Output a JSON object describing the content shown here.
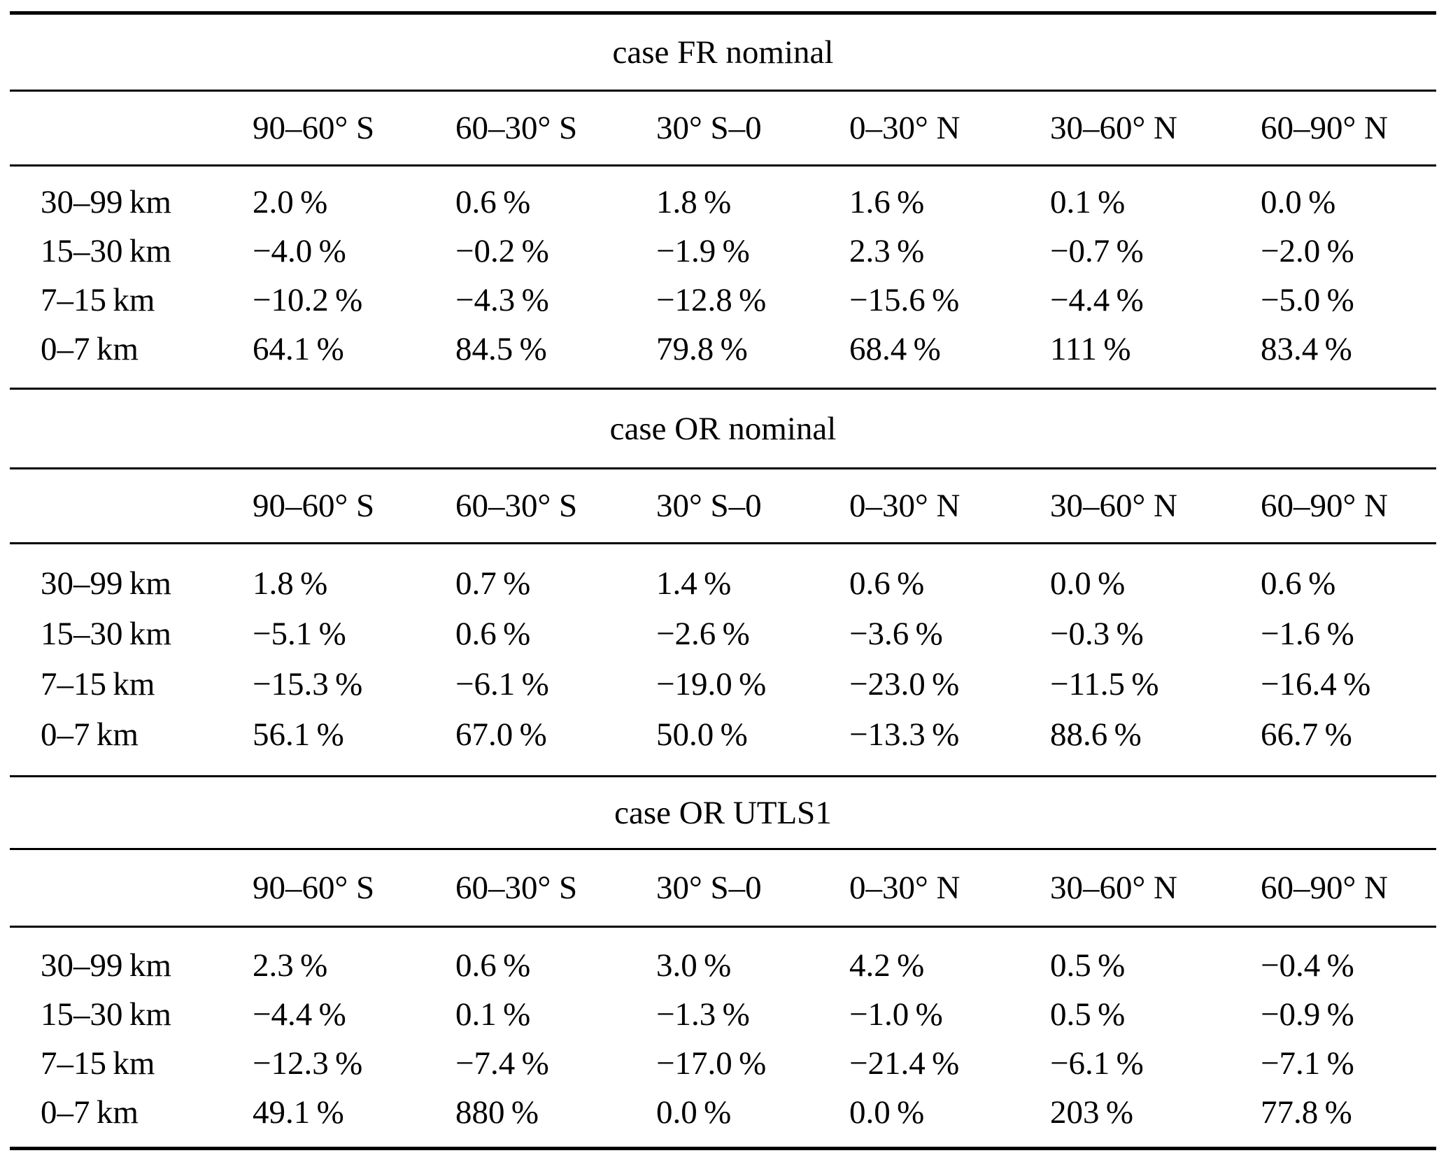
{
  "colors": {
    "background": "#ffffff",
    "text": "#000000",
    "rule": "#000000"
  },
  "tables": [
    {
      "title": "case FR nominal",
      "col_headers": [
        "90–60° S",
        "60–30° S",
        "30° S–0",
        "0–30° N",
        "30–60° N",
        "60–90° N"
      ],
      "rows": [
        {
          "label": "30–99 km",
          "values": [
            "2.0 %",
            "0.6 %",
            "1.8 %",
            "1.6 %",
            "0.1 %",
            "0.0 %"
          ]
        },
        {
          "label": "15–30 km",
          "values": [
            "−4.0 %",
            "−0.2 %",
            "−1.9 %",
            "2.3 %",
            "−0.7 %",
            "−2.0 %"
          ]
        },
        {
          "label": "7–15 km",
          "values": [
            "−10.2 %",
            "−4.3 %",
            "−12.8 %",
            "−15.6 %",
            "−4.4 %",
            "−5.0 %"
          ]
        },
        {
          "label": "0–7 km",
          "values": [
            "64.1 %",
            "84.5 %",
            "79.8 %",
            "68.4 %",
            "111 %",
            "83.4 %"
          ]
        }
      ]
    },
    {
      "title": "case OR nominal",
      "col_headers": [
        "90–60° S",
        "60–30° S",
        "30° S–0",
        "0–30° N",
        "30–60° N",
        "60–90° N"
      ],
      "rows": [
        {
          "label": "30–99 km",
          "values": [
            "1.8 %",
            "0.7 %",
            "1.4 %",
            "0.6 %",
            "0.0 %",
            "0.6 %"
          ]
        },
        {
          "label": "15–30 km",
          "values": [
            "−5.1 %",
            "0.6 %",
            "−2.6 %",
            "−3.6 %",
            "−0.3 %",
            "−1.6 %"
          ]
        },
        {
          "label": "7–15 km",
          "values": [
            "−15.3 %",
            "−6.1 %",
            "−19.0 %",
            "−23.0 %",
            "−11.5 %",
            "−16.4 %"
          ]
        },
        {
          "label": "0–7 km",
          "values": [
            "56.1 %",
            "67.0 %",
            "50.0 %",
            "−13.3 %",
            "88.6 %",
            "66.7 %"
          ]
        }
      ]
    },
    {
      "title": "case OR UTLS1",
      "col_headers": [
        "90–60° S",
        "60–30° S",
        "30° S–0",
        "0–30° N",
        "30–60° N",
        "60–90° N"
      ],
      "rows": [
        {
          "label": "30–99 km",
          "values": [
            "2.3 %",
            "0.6 %",
            "3.0 %",
            "4.2 %",
            "0.5 %",
            "−0.4 %"
          ]
        },
        {
          "label": "15–30 km",
          "values": [
            "−4.4 %",
            "0.1 %",
            "−1.3 %",
            "−1.0 %",
            "0.5 %",
            "−0.9 %"
          ]
        },
        {
          "label": "7–15 km",
          "values": [
            "−12.3 %",
            "−7.4 %",
            "−17.0 %",
            "−21.4 %",
            "−6.1 %",
            "−7.1 %"
          ]
        },
        {
          "label": "0–7 km",
          "values": [
            "49.1 %",
            "880 %",
            "0.0 %",
            "0.0 %",
            "203 %",
            "77.8 %"
          ]
        }
      ]
    }
  ]
}
